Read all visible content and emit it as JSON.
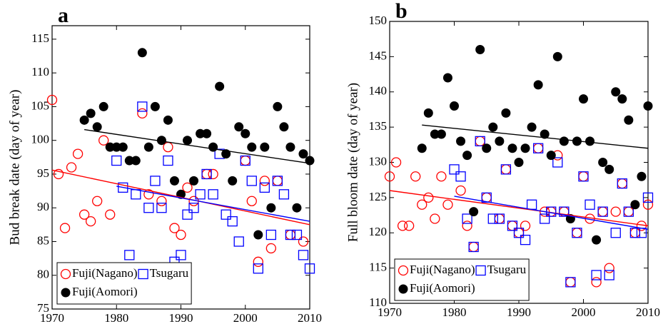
{
  "chart_data": [
    {
      "type": "scatter",
      "panel_label": "a",
      "y_label": "Bud break date (day of year)",
      "xlim": [
        1970,
        2010
      ],
      "ylim": [
        75,
        117
      ],
      "xticks": [
        1970,
        1980,
        1990,
        2000,
        2010
      ],
      "yticks": [
        75,
        80,
        85,
        90,
        95,
        100,
        105,
        110,
        115
      ],
      "legend": "lower left",
      "series": [
        {
          "name": "Fuji(Nagano)",
          "color": "#ff0000",
          "marker": "open-circle",
          "x": [
            1970,
            1971,
            1972,
            1973,
            1974,
            1975,
            1976,
            1977,
            1978,
            1979,
            1984,
            1985,
            1987,
            1988,
            1989,
            1990,
            1991,
            1992,
            1994,
            1995,
            2000,
            2001,
            2002,
            2003,
            2004,
            2005,
            2007,
            2009
          ],
          "values": [
            106,
            95,
            87,
            96,
            98,
            89,
            88,
            91,
            100,
            89,
            104,
            92,
            91,
            99,
            87,
            86,
            93,
            91,
            95,
            95,
            97,
            91,
            82,
            94,
            84,
            94,
            86,
            85
          ]
        },
        {
          "name": "Tsugaru",
          "color": "#0000ff",
          "marker": "open-square",
          "x": [
            1980,
            1981,
            1982,
            1983,
            1984,
            1985,
            1986,
            1987,
            1988,
            1989,
            1990,
            1991,
            1992,
            1993,
            1994,
            1995,
            1996,
            1997,
            1998,
            1999,
            2000,
            2001,
            2002,
            2003,
            2004,
            2005,
            2006,
            2007,
            2008,
            2009,
            2010
          ],
          "values": [
            97,
            93,
            83,
            92,
            105,
            90,
            94,
            90,
            97,
            82,
            83,
            89,
            90,
            92,
            95,
            92,
            98,
            89,
            88,
            85,
            97,
            94,
            81,
            93,
            86,
            94,
            92,
            86,
            86,
            83,
            81
          ]
        },
        {
          "name": "Fuji(Aomori)",
          "color": "#000000",
          "marker": "filled-circle",
          "x": [
            1975,
            1976,
            1977,
            1978,
            1979,
            1980,
            1981,
            1982,
            1983,
            1984,
            1985,
            1986,
            1987,
            1988,
            1989,
            1990,
            1991,
            1992,
            1993,
            1994,
            1995,
            1996,
            1997,
            1998,
            1999,
            2000,
            2001,
            2002,
            2003,
            2004,
            2005,
            2006,
            2007,
            2008,
            2009,
            2010
          ],
          "values": [
            103,
            104,
            102,
            105,
            99,
            99,
            99,
            97,
            97,
            113,
            99,
            105,
            100,
            103,
            94,
            92,
            100,
            94,
            101,
            101,
            99,
            108,
            98,
            94,
            102,
            101,
            99,
            86,
            99,
            90,
            105,
            102,
            99,
            90,
            98,
            97
          ]
        }
      ],
      "trend_lines": [
        {
          "color": "#ff0000",
          "x": [
            1970,
            2010
          ],
          "values": [
            95.6,
            87.5
          ]
        },
        {
          "color": "#0000ff",
          "x": [
            1980,
            2010
          ],
          "values": [
            93.2,
            88
          ]
        },
        {
          "color": "#000000",
          "x": [
            1975,
            2010
          ],
          "values": [
            101.6,
            96.6
          ]
        }
      ]
    },
    {
      "type": "scatter",
      "panel_label": "b",
      "y_label": "Full bloom date (day of year)",
      "xlim": [
        1970,
        2010
      ],
      "ylim": [
        110,
        150
      ],
      "xticks": [
        1970,
        1980,
        1990,
        2000,
        2010
      ],
      "yticks": [
        110,
        115,
        120,
        125,
        130,
        135,
        140,
        145,
        150
      ],
      "legend": "lower left",
      "series": [
        {
          "name": "Fuji(Nagano)",
          "color": "#ff0000",
          "marker": "open-circle",
          "x": [
            1970,
            1971,
            1972,
            1973,
            1974,
            1975,
            1976,
            1977,
            1978,
            1979,
            1981,
            1982,
            1983,
            1984,
            1985,
            1987,
            1988,
            1989,
            1990,
            1991,
            1993,
            1994,
            1995,
            1996,
            1997,
            1998,
            1999,
            2000,
            2001,
            2002,
            2003,
            2004,
            2005,
            2006,
            2007,
            2008,
            2009,
            2010
          ],
          "values": [
            128,
            130,
            121,
            121,
            128,
            124,
            125,
            122,
            128,
            124,
            126,
            121,
            118,
            133,
            125,
            122,
            129,
            121,
            120,
            121,
            132,
            123,
            123,
            131,
            123,
            113,
            120,
            128,
            122,
            113,
            123,
            115,
            123,
            127,
            123,
            120,
            121,
            124
          ]
        },
        {
          "name": "Tsugaru",
          "color": "#0000ff",
          "marker": "open-square",
          "x": [
            1980,
            1981,
            1982,
            1983,
            1984,
            1985,
            1986,
            1987,
            1988,
            1989,
            1990,
            1991,
            1992,
            1993,
            1994,
            1995,
            1996,
            1997,
            1998,
            1999,
            2000,
            2001,
            2002,
            2003,
            2004,
            2005,
            2006,
            2007,
            2008,
            2009,
            2010
          ],
          "values": [
            129,
            128,
            122,
            118,
            133,
            125,
            122,
            122,
            129,
            121,
            120,
            119,
            124,
            132,
            122,
            123,
            130,
            123,
            113,
            120,
            128,
            124,
            114,
            123,
            114,
            120,
            127,
            123,
            120,
            120,
            125
          ]
        },
        {
          "name": "Fuji(Aomori)",
          "color": "#000000",
          "marker": "filled-circle",
          "x": [
            1975,
            1976,
            1977,
            1978,
            1979,
            1980,
            1981,
            1982,
            1983,
            1984,
            1985,
            1986,
            1987,
            1988,
            1989,
            1990,
            1991,
            1992,
            1993,
            1994,
            1995,
            1996,
            1997,
            1998,
            1999,
            2000,
            2001,
            2002,
            2003,
            2004,
            2005,
            2006,
            2007,
            2008,
            2009,
            2010
          ],
          "values": [
            132,
            137,
            134,
            134,
            142,
            138,
            133,
            131,
            123,
            146,
            132,
            135,
            133,
            137,
            132,
            130,
            132,
            135,
            141,
            134,
            131,
            145,
            133,
            122,
            133,
            139,
            133,
            119,
            130,
            129,
            140,
            139,
            136,
            124,
            128,
            138
          ]
        }
      ],
      "trend_lines": [
        {
          "color": "#ff0000",
          "x": [
            1970,
            2010
          ],
          "values": [
            126,
            121
          ]
        },
        {
          "color": "#0000ff",
          "x": [
            1980,
            2010
          ],
          "values": [
            125.2,
            120.5
          ]
        },
        {
          "color": "#000000",
          "x": [
            1975,
            2010
          ],
          "values": [
            135.3,
            132
          ]
        }
      ]
    }
  ]
}
